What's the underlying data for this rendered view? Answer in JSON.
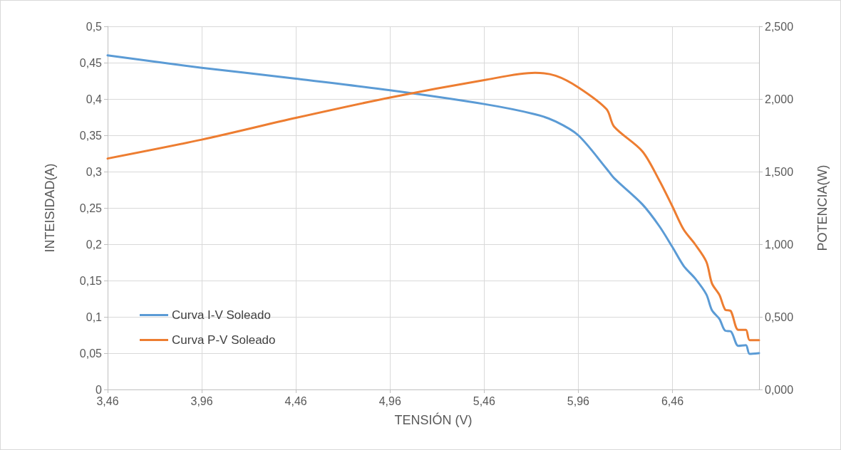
{
  "chart_data": {
    "type": "line",
    "xlabel": "TENSIÓN (V)",
    "ylabel": "INTEISIDAD(A)",
    "y2label": "POTENCIA(W)",
    "x": [
      3.46,
      3.96,
      4.46,
      4.96,
      5.46,
      5.73,
      5.84,
      5.96,
      6.11,
      6.15,
      6.3,
      6.39,
      6.46,
      6.52,
      6.58,
      6.64,
      6.67,
      6.71,
      6.74,
      6.77,
      6.81,
      6.85,
      6.87,
      6.92
    ],
    "series": [
      {
        "name": "Curva I-V Soleado",
        "color": "#5b9bd5",
        "values": [
          0.46,
          0.443,
          0.428,
          0.412,
          0.393,
          0.379,
          0.369,
          0.35,
          0.304,
          0.291,
          0.255,
          0.225,
          0.196,
          0.17,
          0.153,
          0.131,
          0.109,
          0.097,
          0.081,
          0.08,
          0.06,
          0.061,
          0.049,
          0.05
        ]
      },
      {
        "name": "Curva P-V Soleado",
        "color": "#ed7d31",
        "axis": "y2",
        "values": [
          1.59,
          1.72,
          1.87,
          2.01,
          2.13,
          2.18,
          2.16,
          2.08,
          1.93,
          1.81,
          1.64,
          1.44,
          1.26,
          1.1,
          1.0,
          0.88,
          0.73,
          0.65,
          0.55,
          0.54,
          0.41,
          0.41,
          0.34,
          0.34
        ]
      }
    ],
    "xlim": [
      3.46,
      6.92
    ],
    "xticks": [
      {
        "value": 3.46,
        "label": "3,46"
      },
      {
        "value": 3.96,
        "label": "3,96"
      },
      {
        "value": 4.46,
        "label": "4,46"
      },
      {
        "value": 4.96,
        "label": "4,96"
      },
      {
        "value": 5.46,
        "label": "5,46"
      },
      {
        "value": 5.96,
        "label": "5,96"
      },
      {
        "value": 6.46,
        "label": "6,46"
      }
    ],
    "ylim": [
      0,
      0.5
    ],
    "yticks": [
      0,
      {
        "value": 0.05,
        "label": "0,05"
      },
      {
        "value": 0.1,
        "label": "0,1"
      },
      {
        "value": 0.15,
        "label": "0,15"
      },
      {
        "value": 0.2,
        "label": "0,2"
      },
      {
        "value": 0.25,
        "label": "0,25"
      },
      {
        "value": 0.3,
        "label": "0,3"
      },
      {
        "value": 0.35,
        "label": "0,35"
      },
      {
        "value": 0.4,
        "label": "0,4"
      },
      {
        "value": 0.45,
        "label": "0,45"
      },
      {
        "value": 0.5,
        "label": "0,5"
      }
    ],
    "y2lim": [
      0,
      2.5
    ],
    "y2ticks": [
      {
        "value": 0,
        "label": "0,000"
      },
      {
        "value": 0.5,
        "label": "0,500"
      },
      {
        "value": 1,
        "label": "1,000"
      },
      {
        "value": 1.5,
        "label": "1,500"
      },
      {
        "value": 2,
        "label": "2,000"
      },
      {
        "value": 2.5,
        "label": "2,500"
      }
    ],
    "grid": true,
    "legend": "bottom left",
    "marker": "none",
    "line_style": "solid"
  }
}
